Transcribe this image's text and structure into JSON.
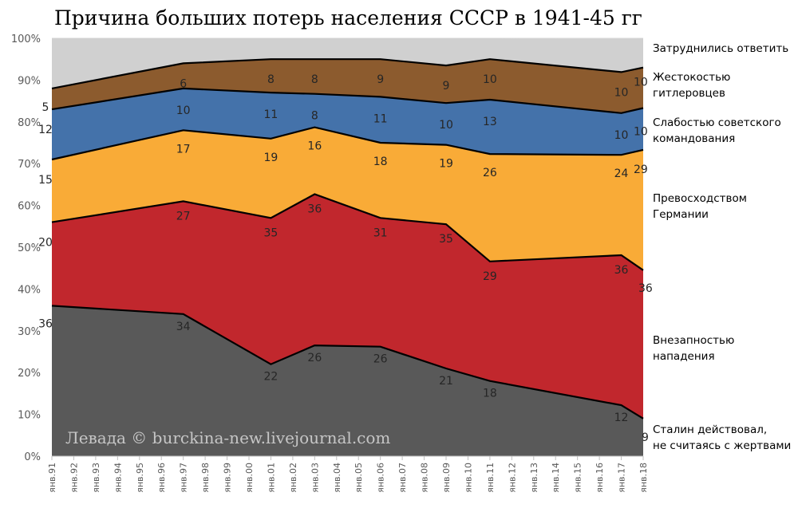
{
  "chart_data": {
    "type": "area",
    "title": "Причина больших потерь населения СССР в 1941-45 гг",
    "watermark": "Левада © burckina-new.livejournal.com",
    "ylim": [
      0,
      100
    ],
    "y_ticks": [
      "0%",
      "10%",
      "20%",
      "30%",
      "40%",
      "50%",
      "60%",
      "70%",
      "80%",
      "90%",
      "100%"
    ],
    "x_ticks": [
      "янв.91",
      "янв.92",
      "янв.93",
      "янв.94",
      "янв.95",
      "янв.96",
      "янв.97",
      "янв.98",
      "янв.99",
      "янв.00",
      "янв.01",
      "янв.02",
      "янв.03",
      "янв.04",
      "янв.05",
      "янв.06",
      "янв.07",
      "янв.08",
      "янв.09",
      "янв.10",
      "янв.11",
      "янв.12",
      "янв.13",
      "янв.14",
      "янв.15",
      "янв.16",
      "янв.17",
      "янв.18"
    ],
    "x_points": [
      "янв.91",
      "янв.97",
      "янв.01",
      "янв.03",
      "янв.06",
      "янв.09",
      "янв.11",
      "янв.17",
      "янв.18"
    ],
    "series": [
      {
        "name": "Сталин действовал, не считаясь с жертвами",
        "color": "#595959",
        "values": [
          36,
          34,
          22,
          26.5,
          26.2,
          21,
          18,
          12.2,
          9
        ],
        "labels": [
          "36",
          "34",
          "22",
          "26",
          "26",
          "21",
          "18",
          "12",
          "9"
        ]
      },
      {
        "name": "Внезапностью нападения",
        "color": "#c1272d",
        "values": [
          20,
          27,
          35,
          36.2,
          30.8,
          34.5,
          28.6,
          35.9,
          35.5
        ],
        "labels": [
          "20",
          "27",
          "35",
          "36",
          "31",
          "35",
          "29",
          "36",
          "36"
        ]
      },
      {
        "name": "Превосходством Германии",
        "color": "#f9ab37",
        "values": [
          15,
          17,
          19,
          16,
          18,
          19,
          25.7,
          24,
          28.8
        ],
        "labels": [
          "15",
          "17",
          "19",
          "16",
          "18",
          "19",
          "26",
          "24",
          "29"
        ]
      },
      {
        "name": "Слабостью советского командования",
        "color": "#4472aa",
        "values": [
          12,
          10,
          11,
          8,
          11,
          10,
          13,
          10,
          10
        ],
        "labels": [
          "12",
          "10",
          "11",
          "8",
          "11",
          "10",
          "13",
          "10",
          "10"
        ]
      },
      {
        "name": "Жестокостью гитлеровцев",
        "color": "#8c5b2e",
        "values": [
          5,
          6,
          8,
          8.3,
          9,
          9,
          9.7,
          9.8,
          9.7
        ],
        "labels": [
          "5",
          "6",
          "8",
          "8",
          "9",
          "9",
          "10",
          "10",
          "10"
        ]
      },
      {
        "name": "Затруднились ответить",
        "color": "#d0d0d0",
        "values": [
          12,
          6,
          5,
          5,
          5,
          6.5,
          5,
          8,
          7
        ],
        "labels": [
          "",
          "",
          "",
          "",
          "",
          "",
          "",
          "",
          ""
        ]
      }
    ],
    "legend": [
      {
        "lines": [
          "Затруднились ответить"
        ]
      },
      {
        "lines": [
          "Жестокостью",
          "гитлеровцев"
        ]
      },
      {
        "lines": [
          "Слабостью советского",
          "командования"
        ]
      },
      {
        "lines": [
          "Превосходством",
          "Германии"
        ]
      },
      {
        "lines": [
          "Внезапностью",
          "нападения"
        ]
      },
      {
        "lines": [
          "Сталин действовал,",
          "не считаясь с жертвами"
        ]
      }
    ],
    "legend_position": "right",
    "grid": true
  }
}
